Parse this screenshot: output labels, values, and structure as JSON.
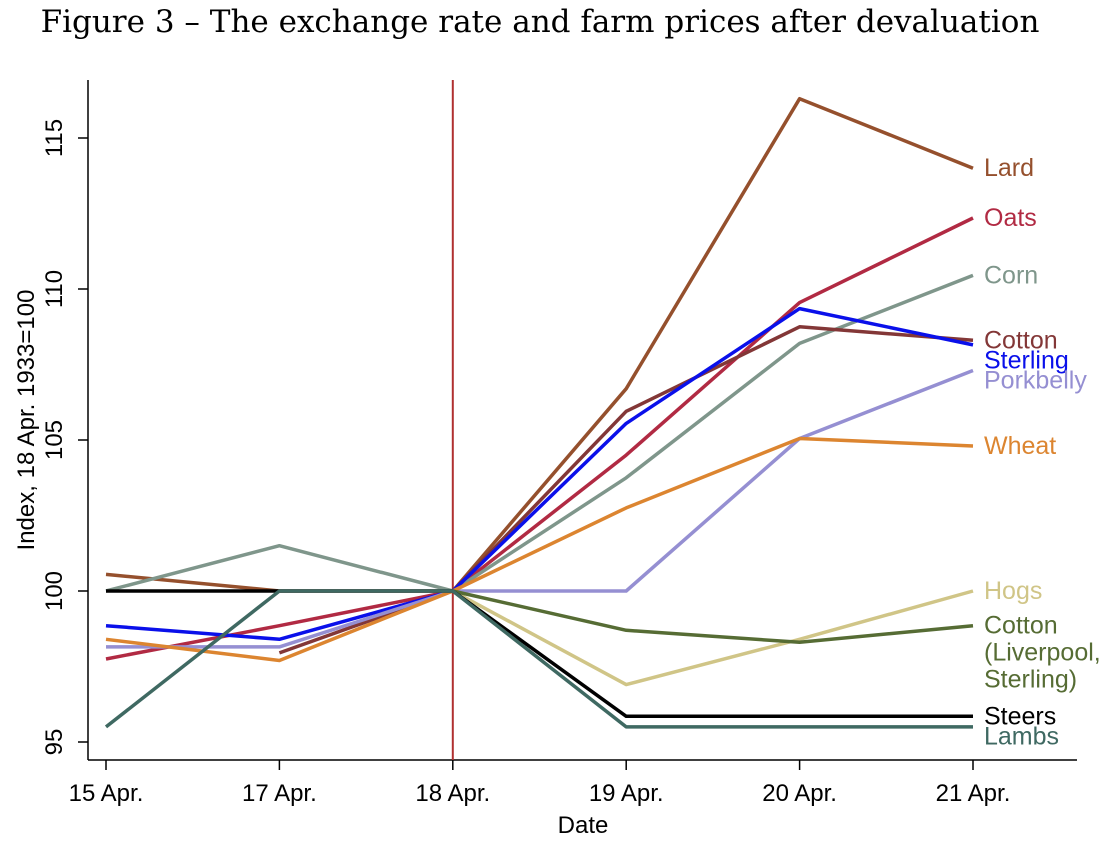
{
  "chart_data": {
    "type": "line",
    "title": "Figure 3 – The exchange rate and farm prices after devaluation",
    "xlabel": "Date",
    "ylabel": "Index, 18 Apr. 1933=100",
    "categories": [
      "15 Apr.",
      "17 Apr.",
      "18 Apr.",
      "19 Apr.",
      "20 Apr.",
      "21 Apr."
    ],
    "yticks": [
      95,
      100,
      105,
      110,
      115
    ],
    "ylim": [
      94.4,
      116.8
    ],
    "event_marker": {
      "category": "18 Apr.",
      "color": "#b03030"
    },
    "grid": false,
    "legend": "direct labels at line ends",
    "series": [
      {
        "name": "Lard",
        "label_lines": [
          "Lard"
        ],
        "color": "#95502d",
        "values": [
          100.55,
          100,
          100,
          106.7,
          116.3,
          114.0
        ]
      },
      {
        "name": "Oats",
        "label_lines": [
          "Oats"
        ],
        "color": "#b12a43",
        "values": [
          97.75,
          98.85,
          100,
          104.5,
          109.55,
          112.35
        ]
      },
      {
        "name": "Corn",
        "label_lines": [
          "Corn"
        ],
        "color": "#7f968b",
        "values": [
          100,
          101.5,
          100,
          103.75,
          108.2,
          110.45
        ]
      },
      {
        "name": "Cotton",
        "label_lines": [
          "Cotton"
        ],
        "color": "#833737",
        "values": [
          null,
          97.95,
          100,
          105.95,
          108.75,
          108.3
        ]
      },
      {
        "name": "Sterling",
        "label_lines": [
          "Sterling"
        ],
        "color": "#0a10ea",
        "values": [
          98.85,
          98.4,
          100,
          105.55,
          109.35,
          108.15
        ]
      },
      {
        "name": "Porkbelly",
        "label_lines": [
          "Porkbelly"
        ],
        "color": "#958fd2",
        "values": [
          98.15,
          98.15,
          100,
          100,
          105.05,
          107.3
        ]
      },
      {
        "name": "Wheat",
        "label_lines": [
          "Wheat"
        ],
        "color": "#dc8530",
        "values": [
          98.4,
          97.7,
          100,
          102.75,
          105.05,
          104.8
        ]
      },
      {
        "name": "Hogs",
        "label_lines": [
          "Hogs"
        ],
        "color": "#d0c587",
        "values": [
          null,
          null,
          100,
          96.9,
          98.4,
          100.0
        ]
      },
      {
        "name": "Cotton (Liverpool, Sterling)",
        "label_lines": [
          "Cotton",
          "(Liverpool,",
          "Sterling)"
        ],
        "color": "#566c34",
        "values": [
          null,
          null,
          100,
          98.7,
          98.3,
          98.85
        ]
      },
      {
        "name": "Steers",
        "label_lines": [
          "Steers"
        ],
        "color": "#000000",
        "values": [
          100,
          100,
          100,
          95.85,
          95.85,
          95.85
        ]
      },
      {
        "name": "Lambs",
        "label_lines": [
          "Lambs"
        ],
        "color": "#3f6962",
        "values": [
          95.5,
          100,
          100,
          95.5,
          95.5,
          95.5
        ]
      }
    ]
  }
}
